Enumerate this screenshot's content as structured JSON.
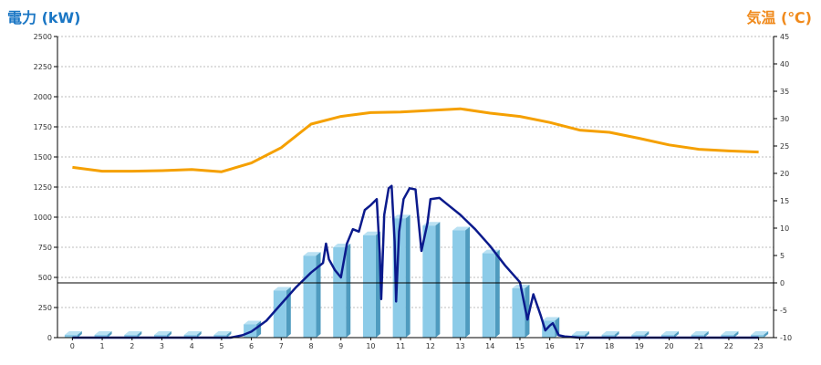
{
  "colors": {
    "power_axis": "#1a76c4",
    "temp_axis": "#f08a1c",
    "bar_face": "#8ccbe8",
    "bar_side": "#4f9bbf",
    "bar_top": "#b9e1f3",
    "power_line": "#0b1a8c",
    "temp_line": "#f5a000",
    "grid": "#bdbdbd",
    "zero_line": "#000000"
  },
  "chart_data": {
    "type": "bar",
    "title_left": "電力 (kW)",
    "title_right": "気温 (℃)",
    "x": [
      "0",
      "1",
      "2",
      "3",
      "4",
      "5",
      "6",
      "7",
      "8",
      "9",
      "10",
      "11",
      "12",
      "13",
      "14",
      "15",
      "16",
      "17",
      "18",
      "19",
      "20",
      "21",
      "22",
      "23"
    ],
    "y_left": {
      "min": 0,
      "max": 2500,
      "ticks": [
        0,
        250,
        500,
        750,
        1000,
        1250,
        1500,
        1750,
        2000,
        2250,
        2500
      ]
    },
    "y_right": {
      "min": -10,
      "max": 45,
      "ticks": [
        -10,
        -5,
        0,
        5,
        10,
        15,
        20,
        25,
        30,
        35,
        40,
        45
      ]
    },
    "grid": true,
    "series": [
      {
        "kind": "bar",
        "axis": "left",
        "values": [
          0,
          0,
          0,
          0,
          0,
          0,
          110,
          390,
          680,
          750,
          850,
          990,
          930,
          890,
          700,
          410,
          140,
          0,
          0,
          0,
          0,
          0,
          0,
          0
        ]
      },
      {
        "kind": "line",
        "axis": "left",
        "points": [
          [
            0,
            0
          ],
          [
            5.3,
            0
          ],
          [
            5.7,
            20
          ],
          [
            6,
            50
          ],
          [
            6.5,
            140
          ],
          [
            7,
            280
          ],
          [
            7.5,
            420
          ],
          [
            8,
            540
          ],
          [
            8.4,
            620
          ],
          [
            8.5,
            780
          ],
          [
            8.6,
            650
          ],
          [
            8.8,
            560
          ],
          [
            9,
            500
          ],
          [
            9.2,
            780
          ],
          [
            9.4,
            900
          ],
          [
            9.6,
            880
          ],
          [
            9.8,
            1060
          ],
          [
            10,
            1100
          ],
          [
            10.2,
            1150
          ],
          [
            10.3,
            700
          ],
          [
            10.35,
            320
          ],
          [
            10.45,
            1020
          ],
          [
            10.6,
            1240
          ],
          [
            10.7,
            1260
          ],
          [
            10.8,
            800
          ],
          [
            10.85,
            300
          ],
          [
            10.95,
            880
          ],
          [
            11.1,
            1150
          ],
          [
            11.3,
            1240
          ],
          [
            11.5,
            1230
          ],
          [
            11.7,
            720
          ],
          [
            11.9,
            950
          ],
          [
            12,
            1150
          ],
          [
            12.3,
            1160
          ],
          [
            12.5,
            1120
          ],
          [
            13,
            1020
          ],
          [
            13.5,
            900
          ],
          [
            14,
            760
          ],
          [
            14.5,
            600
          ],
          [
            15,
            460
          ],
          [
            15.25,
            150
          ],
          [
            15.45,
            360
          ],
          [
            15.7,
            180
          ],
          [
            15.85,
            60
          ],
          [
            16,
            100
          ],
          [
            16.1,
            120
          ],
          [
            16.3,
            20
          ],
          [
            16.5,
            10
          ],
          [
            17,
            0
          ],
          [
            23,
            0
          ]
        ]
      },
      {
        "kind": "line",
        "axis": "right",
        "values": [
          21.1,
          20.4,
          20.4,
          20.5,
          20.7,
          20.3,
          21.9,
          24.7,
          29.0,
          30.4,
          31.1,
          31.2,
          31.5,
          31.8,
          31.0,
          30.4,
          29.3,
          27.9,
          27.5,
          26.4,
          25.2,
          24.4,
          24.1,
          23.9
        ]
      }
    ]
  }
}
